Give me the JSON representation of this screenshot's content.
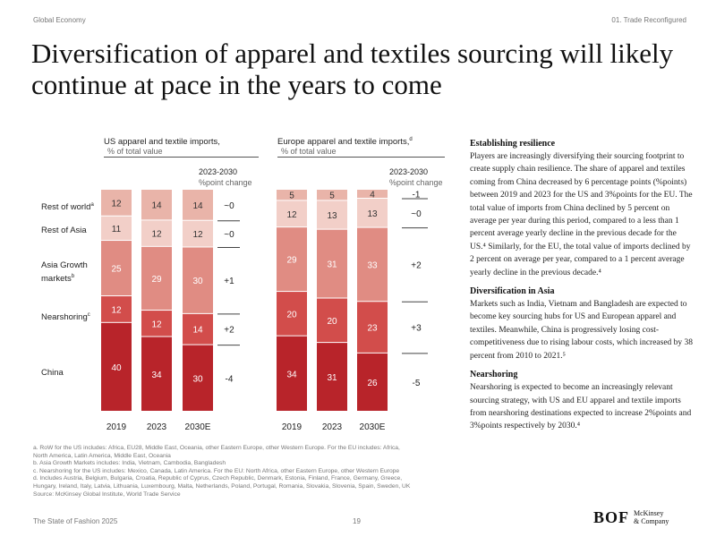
{
  "header": {
    "left": "Global Economy",
    "right": "01. Trade Reconfigured"
  },
  "title": "Diversification of apparel and textiles sourcing will likely continue at pace in the years to come",
  "row_labels": [
    "Rest of world",
    "Rest of Asia",
    "Asia Growth markets",
    "Nearshoring",
    "China"
  ],
  "row_label_notes": [
    "a",
    "",
    "b",
    "c",
    ""
  ],
  "colors": {
    "China": "#b8242a",
    "Nearshoring": "#d24d4b",
    "Asia Growth markets": "#e08c83",
    "Rest of Asia": "#f2cfc8",
    "Rest of world": "#e9b4a9"
  },
  "chart_data": [
    {
      "type": "bar",
      "title": "US apparel and textile imports,",
      "title_note": "",
      "subtitle": "% of total value",
      "change_header": [
        "2023-2030",
        "%point change"
      ],
      "categories": [
        "2019",
        "2023",
        "2030E"
      ],
      "stacked": true,
      "series": [
        {
          "name": "China",
          "values": [
            40,
            34,
            30
          ],
          "change": "-4"
        },
        {
          "name": "Nearshoring",
          "values": [
            12,
            12,
            14
          ],
          "change": "+2"
        },
        {
          "name": "Asia Growth markets",
          "values": [
            25,
            29,
            30
          ],
          "change": "+1"
        },
        {
          "name": "Rest of Asia",
          "values": [
            11,
            12,
            12
          ],
          "change": "~0"
        },
        {
          "name": "Rest of world",
          "values": [
            12,
            14,
            14
          ],
          "change": "~0"
        }
      ]
    },
    {
      "type": "bar",
      "title": "Europe apparel and textile imports,",
      "title_note": "d",
      "subtitle": "% of total value",
      "change_header": [
        "2023-2030",
        "%point change"
      ],
      "categories": [
        "2019",
        "2023",
        "2030E"
      ],
      "stacked": true,
      "series": [
        {
          "name": "China",
          "values": [
            34,
            31,
            26
          ],
          "change": "-5"
        },
        {
          "name": "Nearshoring",
          "values": [
            20,
            20,
            23
          ],
          "change": "+3"
        },
        {
          "name": "Asia Growth markets",
          "values": [
            29,
            31,
            33
          ],
          "change": "+2"
        },
        {
          "name": "Rest of Asia",
          "values": [
            12,
            13,
            13
          ],
          "change": "~0"
        },
        {
          "name": "Rest of world",
          "values": [
            5,
            5,
            4
          ],
          "change": "-1"
        }
      ]
    }
  ],
  "sections": [
    {
      "heading": "Establishing resilience",
      "body": "Players are increasingly diversifying their sourcing footprint to create supply chain resilience. The share of apparel and textiles coming from China decreased by 6 percentage points (%points) between 2019 and 2023 for the US and 3%points for the EU. The total value of imports from China declined by 5 percent on average per year during this period, compared to a less than 1 percent average yearly decline in the previous decade for the US.⁴ Similarly, for the EU, the total value of imports declined by 2 percent on average per year, compared to a 1 percent average yearly decline in the previous decade.⁴"
    },
    {
      "heading": "Diversification in Asia",
      "body": "Markets such as India, Vietnam and Bangladesh are expected to become key sourcing hubs for US and European apparel and textiles. Meanwhile, China is progressively losing cost-competitiveness due to rising labour costs, which increased by 38 percent from 2010 to 2021.⁵"
    },
    {
      "heading": "Nearshoring",
      "body": "Nearshoring is expected to become an increasingly relevant sourcing strategy, with US and EU apparel and textile imports from nearshoring destinations expected to increase 2%points and 3%points respectively by 2030.⁴"
    }
  ],
  "footnotes": [
    "a. RoW for the US includes: Africa, EU28, Middle East, Oceania, other Eastern Europe, other Western Europe. For the EU includes: Africa,",
    "North America, Latin America, Middle East, Oceania",
    "b. Asia Growth Markets includes: India, Vietnam, Cambodia, Bangladesh",
    "c. Nearshoring for the US includes: Mexico, Canada, Latin America. For the EU: North Africa, other Eastern Europe, other Western Europe",
    "d. Includes Austria, Belgium, Bulgaria, Croatia, Republic of Cyprus, Czech Republic, Denmark, Estonia, Finland, France, Germany, Greece,",
    "Hungary, Ireland, Italy, Latvia, Lithuania, Luxembourg, Malta, Netherlands, Poland, Portugal, Romania, Slovakia, Slovenia, Spain, Sweden, UK",
    "Source: McKinsey Global Institute, World Trade Service"
  ],
  "footer": {
    "left": "The State of Fashion 2025",
    "page": "19",
    "bof": "BOF",
    "mck_line1": "McKinsey",
    "mck_line2": "& Company"
  }
}
